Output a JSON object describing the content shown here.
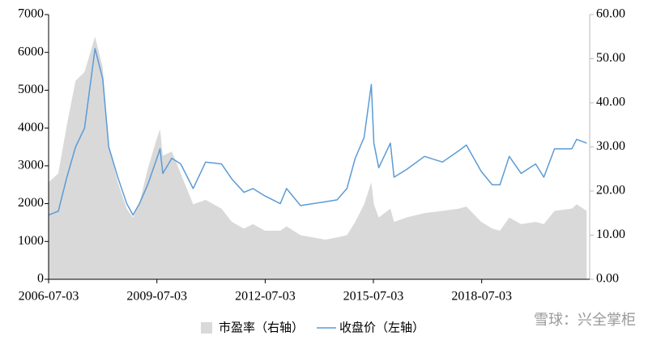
{
  "chart_data": {
    "type": "line",
    "x": [
      "2006-07-03",
      "2006-10-09",
      "2007-01-04",
      "2007-04-02",
      "2007-07-02",
      "2007-10-16",
      "2008-01-02",
      "2008-03-03",
      "2008-06-02",
      "2008-09-01",
      "2008-11-03",
      "2009-01-05",
      "2009-04-01",
      "2009-07-03",
      "2009-08-04",
      "2009-09-01",
      "2009-12-01",
      "2010-03-01",
      "2010-07-05",
      "2010-11-08",
      "2011-04-18",
      "2011-08-01",
      "2011-12-01",
      "2012-03-01",
      "2012-07-03",
      "2012-12-03",
      "2013-02-04",
      "2013-06-25",
      "2014-03-03",
      "2014-07-01",
      "2014-10-08",
      "2014-12-31",
      "2015-03-31",
      "2015-06-12",
      "2015-07-08",
      "2015-08-26",
      "2015-12-22",
      "2016-01-28",
      "2016-06-01",
      "2016-12-01",
      "2017-06-01",
      "2017-11-14",
      "2018-01-29",
      "2018-06-29",
      "2018-10-18",
      "2019-01-04",
      "2019-04-08",
      "2019-08-06",
      "2019-12-31",
      "2020-03-23",
      "2020-07-09",
      "2020-12-31",
      "2021-02-18",
      "2021-05-31"
    ],
    "series": [
      {
        "name": "市盈率（右轴）",
        "kind": "area",
        "axis": "y2",
        "color": "#d9d9d9",
        "values": [
          22,
          24,
          35,
          45,
          47,
          55,
          48,
          30,
          22,
          16,
          14,
          17,
          25,
          32,
          34,
          28,
          29,
          24,
          17,
          18,
          16,
          13,
          11.5,
          12.5,
          11,
          11,
          12,
          10,
          9,
          9.5,
          10,
          13,
          17,
          22,
          17,
          14,
          16,
          13,
          14,
          15,
          15.5,
          16,
          16.5,
          13,
          11.5,
          11,
          14,
          12.5,
          13,
          12.5,
          15.5,
          16,
          17,
          15.5
        ]
      },
      {
        "name": "收盘价（左轴）",
        "kind": "line",
        "color": "#5b9bd5",
        "values": [
          1700,
          1800,
          2700,
          3500,
          4000,
          6100,
          5300,
          3500,
          2700,
          2000,
          1700,
          1990,
          2500,
          3200,
          3450,
          2800,
          3200,
          3050,
          2400,
          3100,
          3050,
          2650,
          2300,
          2400,
          2200,
          2000,
          2400,
          1950,
          2050,
          2100,
          2400,
          3200,
          3750,
          5150,
          3600,
          2950,
          3600,
          2700,
          2900,
          3250,
          3100,
          3400,
          3550,
          2850,
          2500,
          2500,
          3250,
          2800,
          3050,
          2700,
          3450,
          3450,
          3700,
          3600
        ]
      }
    ],
    "xlim": [
      "2006-07-03",
      "2021-06-30"
    ],
    "xticks": [
      "2006-07-03",
      "2009-07-03",
      "2012-07-03",
      "2015-07-03",
      "2018-07-03"
    ],
    "ylim": [
      0,
      7000
    ],
    "yticks": [
      0,
      1000,
      2000,
      3000,
      4000,
      5000,
      6000,
      7000
    ],
    "y2lim": [
      0,
      60
    ],
    "y2ticks": [
      {
        "value": 0,
        "label": "0.00"
      },
      {
        "value": 10,
        "label": "10.00"
      },
      {
        "value": 20,
        "label": "20.00"
      },
      {
        "value": 30,
        "label": "30.00"
      },
      {
        "value": 40,
        "label": "40.00"
      },
      {
        "value": 50,
        "label": "50.00"
      },
      {
        "value": 60,
        "label": "60.00"
      }
    ],
    "watermark": "雪球：兴全掌柜"
  }
}
